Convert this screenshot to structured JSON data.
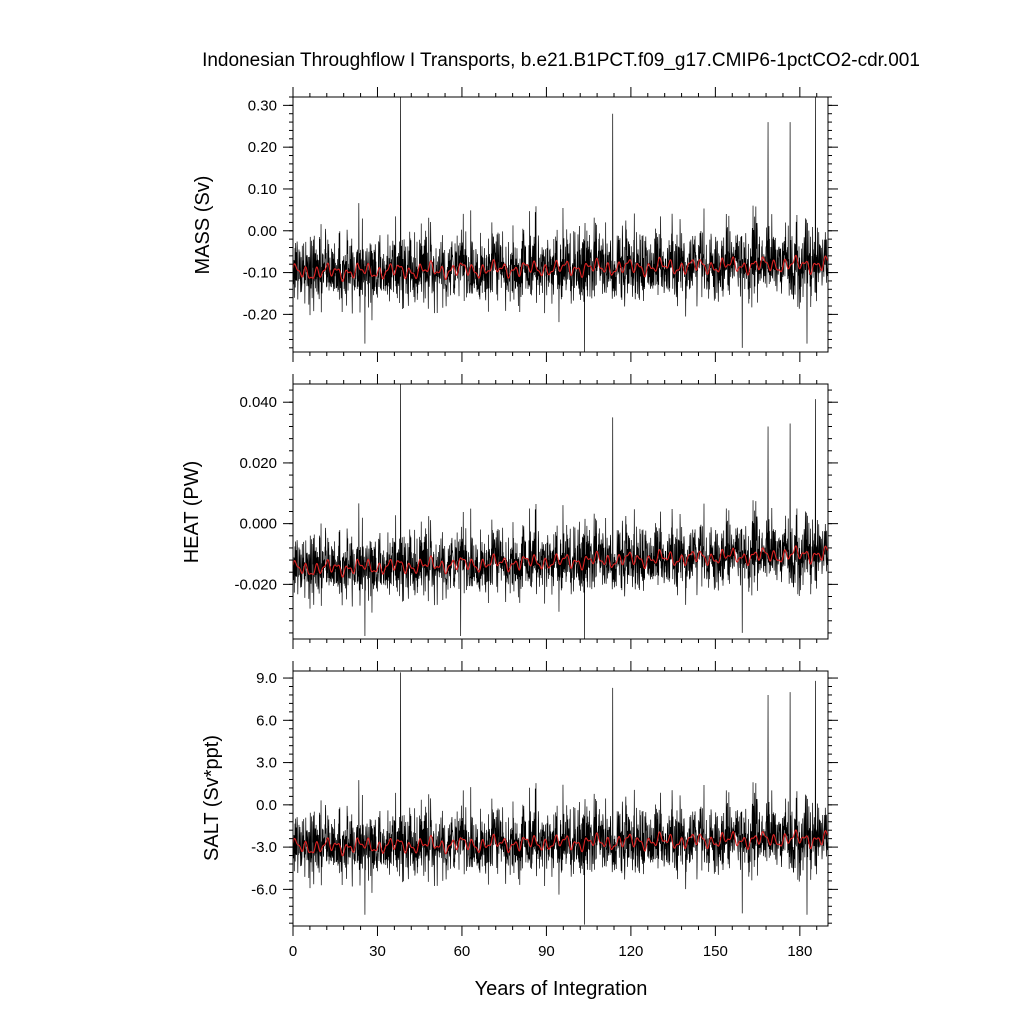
{
  "title": "Indonesian Throughflow I Transports, b.e21.B1PCT.f09_g17.CMIP6-1pctCO2-cdr.001",
  "xlabel": "Years of Integration",
  "colors": {
    "monthly": "#000000",
    "annual": "#dd2222",
    "frame": "#000000"
  },
  "chart_data": [
    {
      "type": "line",
      "panel": "mass",
      "ylabel": "MASS (Sv)",
      "xlim": [
        0,
        190
      ],
      "ylim": [
        -0.29,
        0.32
      ],
      "yticks": [
        0.3,
        0.2,
        0.1,
        0.0,
        -0.1,
        -0.2
      ],
      "yticklabels": [
        "0.30",
        "0.20",
        "0.10",
        "0.00",
        "-0.10",
        "-0.20"
      ],
      "xticks": [
        0,
        30,
        60,
        90,
        120,
        150,
        180
      ],
      "xticklabels": [
        "0",
        "30",
        "60",
        "90",
        "120",
        "150",
        "180"
      ],
      "series": [
        {
          "style": "monthly",
          "mean_start": -0.1,
          "mean_end": -0.08,
          "spread": 0.07,
          "min": -0.29,
          "max": 0.32,
          "spikes": [
            [
              38.2,
              0.32
            ],
            [
              113.5,
              0.28
            ],
            [
              185.5,
              0.32
            ],
            [
              176.5,
              0.26
            ],
            [
              168.7,
              0.26
            ],
            [
              103.5,
              -0.29
            ],
            [
              159.5,
              -0.28
            ],
            [
              25.5,
              -0.27
            ],
            [
              182.5,
              -0.27
            ]
          ]
        },
        {
          "style": "annual",
          "mean_start": -0.1,
          "mean_end": -0.08,
          "spread": 0.012
        }
      ]
    },
    {
      "type": "line",
      "panel": "heat",
      "ylabel": "HEAT (PW)",
      "xlim": [
        0,
        190
      ],
      "ylim": [
        -0.038,
        0.046
      ],
      "yticks": [
        0.04,
        0.02,
        0.0,
        -0.02
      ],
      "yticklabels": [
        "0.040",
        "0.020",
        "0.000",
        "-0.020"
      ],
      "xticks": [
        0,
        30,
        60,
        90,
        120,
        150,
        180
      ],
      "xticklabels": [
        "0",
        "30",
        "60",
        "90",
        "120",
        "150",
        "180"
      ],
      "series": [
        {
          "style": "monthly",
          "mean_start": -0.015,
          "mean_end": -0.01,
          "spread": 0.009,
          "min": -0.038,
          "max": 0.046,
          "spikes": [
            [
              38.2,
              0.046
            ],
            [
              185.5,
              0.041
            ],
            [
              113.5,
              0.035
            ],
            [
              176.5,
              0.033
            ],
            [
              168.7,
              0.032
            ],
            [
              103.5,
              -0.038
            ],
            [
              59.5,
              -0.037
            ],
            [
              25.5,
              -0.037
            ],
            [
              159.5,
              -0.036
            ]
          ]
        },
        {
          "style": "annual",
          "mean_start": -0.015,
          "mean_end": -0.01,
          "spread": 0.0016
        }
      ]
    },
    {
      "type": "line",
      "panel": "salt",
      "ylabel": "SALT (Sv*ppt)",
      "xlim": [
        0,
        190
      ],
      "ylim": [
        -8.6,
        9.5
      ],
      "yticks": [
        9.0,
        6.0,
        3.0,
        0.0,
        -3.0,
        -6.0
      ],
      "yticklabels": [
        "9.0",
        "6.0",
        "3.0",
        "0.0",
        "-3.0",
        "-6.0"
      ],
      "xticks": [
        0,
        30,
        60,
        90,
        120,
        150,
        180
      ],
      "xticklabels": [
        "0",
        "30",
        "60",
        "90",
        "120",
        "150",
        "180"
      ],
      "series": [
        {
          "style": "monthly",
          "mean_start": -3.0,
          "mean_end": -2.4,
          "spread": 2.0,
          "min": -8.6,
          "max": 9.5,
          "spikes": [
            [
              38.2,
              9.4
            ],
            [
              185.5,
              8.8
            ],
            [
              113.5,
              8.3
            ],
            [
              176.5,
              8.0
            ],
            [
              168.7,
              7.8
            ],
            [
              103.5,
              -8.5
            ],
            [
              25.5,
              -7.8
            ],
            [
              182.5,
              -7.8
            ],
            [
              159.5,
              -7.7
            ]
          ]
        },
        {
          "style": "annual",
          "mean_start": -3.0,
          "mean_end": -2.4,
          "spread": 0.35
        }
      ]
    }
  ]
}
